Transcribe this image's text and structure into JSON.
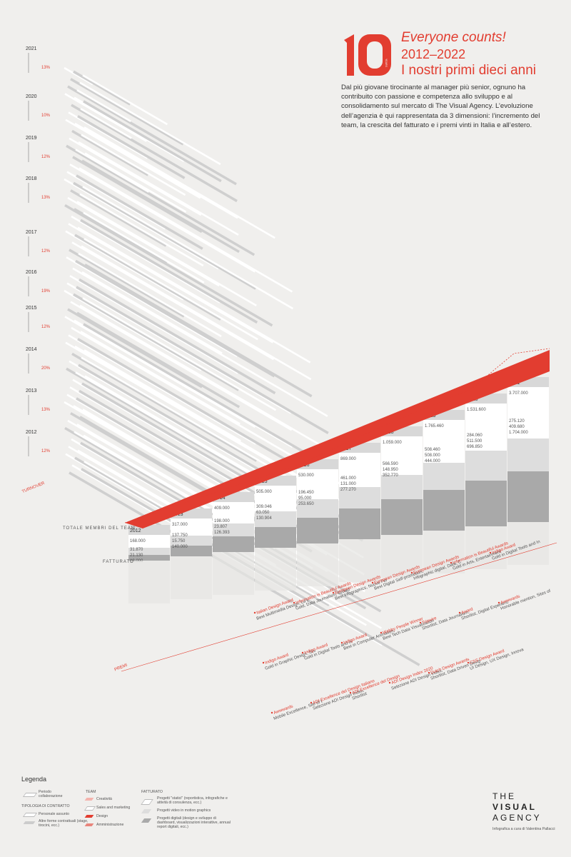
{
  "header": {
    "logo_number": "10",
    "logo_sub": "YEARS",
    "subtitle": "Everyone counts!",
    "years": "2012–2022",
    "headline": "I nostri primi dieci anni",
    "intro": "Dal più giovane tirocinante al manager più senior, ognuno ha contribuito con passione e competenza allo sviluppo e al consolidamento sul mercato di The Visual Agency. L’evoluzione dell’agenzia è qui rappresentata da 3 dimensioni: l’incremento del team, la crescita del fatturato e i premi vinti in Italia e all’estero."
  },
  "axes": {
    "team": "TOTALE MEMBRI DEL TEAM",
    "fatturato": "FATTURATO",
    "premi": "PREMI",
    "turnover": "TURNOVER"
  },
  "timeline_years": [
    "2021",
    "2020",
    "2019",
    "2018",
    "2017",
    "2016",
    "2015",
    "2014",
    "2013",
    "2012"
  ],
  "turnover_pct": [
    "13%",
    "10%",
    "12%",
    "13%",
    "12%",
    "19%",
    "12%",
    "20%",
    "13%",
    "12%"
  ],
  "columns": [
    {
      "year": "2012",
      "top": "168.000",
      "vals": [
        "31.870",
        "21.130",
        "18.000"
      ]
    },
    {
      "year": "2013",
      "top": "317.000",
      "vals": [
        "137.750",
        "15.750",
        "140.000"
      ]
    },
    {
      "year": "2014",
      "top": "409.000",
      "vals": [
        "198.000",
        "23.807",
        "126.393"
      ]
    },
    {
      "year": "2015",
      "top": "505.000",
      "vals": [
        "309.046",
        "63.050",
        "130.904"
      ]
    },
    {
      "year": "2016",
      "top": "530.000",
      "vals": [
        "196.450",
        "95.000",
        "253.650"
      ]
    },
    {
      "year": "2017",
      "top": "869.000",
      "vals": [
        "461.000",
        "131.000",
        "277.270"
      ]
    },
    {
      "year": "2018",
      "top": "1.059.000",
      "vals": [
        "566.590",
        "148.950",
        "352.770"
      ]
    },
    {
      "year": "2019",
      "top": "1.765.460",
      "vals": [
        "508.460",
        "508.000",
        "444.000"
      ]
    },
    {
      "year": "2020",
      "top": "1.531.600",
      "vals": [
        "284.060",
        "511.500",
        "696.850"
      ]
    },
    {
      "year": "2021",
      "top": "3.707.000",
      "vals": [
        "275.120",
        "409.680",
        "1.704.000"
      ]
    }
  ],
  "premi": [
    {
      "title": "Italian Design Award",
      "body": "Best Multimedia Design, La Lettura - Corriere della Sera"
    },
    {
      "title": "Information is Beautiful Awards",
      "body": "Gold, Data Journalism, Crowdfunding Visualized, Le Lettura - Corriere della Sera"
    },
    {
      "title": "European Design Awards",
      "body": "Best Infographics, Nuove Ferrovie, Le Lettura - Corriere della Sera"
    },
    {
      "title": "European Design Awards",
      "body": "Best Digital Self-promotion, Build a Day in Life, The Visual Agency"
    },
    {
      "title": "European Design Awards",
      "body": "Infographic digital, Data, Cognition Network, Corriere della Sera"
    },
    {
      "title": "Information is Beautiful Awards",
      "body": "Gold in Arts, Entertainment & Culture, Feature, A Day in Lilly's Life, The Visual Agency"
    },
    {
      "title": "Indigo Award",
      "body": "Gold in Digital Tools and Interactive Design, Gold in Infographic"
    },
    {
      "title": "Indigo Award",
      "body": "Gold in Graphic Design, Silver in Digital Design, Inforaphic, The Visual Agency"
    },
    {
      "title": "Indigo Award",
      "body": "Gold in Digital Tools and Interactive Design, Beyond Capital, Banca Generali"
    },
    {
      "title": "Indigo Award",
      "body": "Best in Computer Animation, Design, Gold in Interactive Media, Banca Generali"
    },
    {
      "title": "Webby People Winner",
      "body": "Best Tech Data Visualization, Art's Fair, The New York Times"
    },
    {
      "title": "Tripwire",
      "body": "Shortlist, Data Journalism, The Visual Agency"
    },
    {
      "title": "Award",
      "body": "Shortlist, Digital Experiences, Infographics, The Visual Agency"
    },
    {
      "title": "Awwwards",
      "body": "Honorable mention, Sites of the Day, Mobile Excellence"
    },
    {
      "title": "Awwwards",
      "body": "Mobile Excellence, Site of the Day, Site of the Month"
    },
    {
      "title": "ADI Excellence del Design Italiano",
      "body": "Selezione ADI Design Index, Banca Generali"
    },
    {
      "title": "ADI Excellence del Design",
      "body": "Shortlist"
    },
    {
      "title": "ADI Design Index 2020",
      "body": "Selezione ADI Design Index, Banca Generali"
    },
    {
      "title": "Dutch Design Awards",
      "body": "Shortlist, Data Driven Design"
    },
    {
      "title": "CSS Design Award",
      "body": "UI Design, UX Design, Innovation, Site of the Day, The Visual Agency"
    }
  ],
  "legend": {
    "title": "Legenda",
    "periodo": "Periodo collaborazione",
    "tipologia": "TIPOLOGIA DI CONTRATTO",
    "assunto": "Personale assunto",
    "altre": "Altre forme contrattuali (stage, tirocini, ecc.)",
    "team_head": "TEAM",
    "creativita": "Creatività",
    "sales": "Sales and marketing",
    "design": "Design",
    "amministrazione": "Amministrazione",
    "fatt_head": "FATTURATO",
    "statici": "Progetti \"statici\" (reportistica, infografiche e attività di consulenza, ecc.)",
    "video": "Progetti video in motion graphics",
    "digitali": "Progetti digitali (design e sviluppo di dashboard, visualizzazioni interattive, annual report digitali, ecc.)"
  },
  "brand": {
    "line1": "THE",
    "line2": "VISUAL",
    "line3": "AGENCY",
    "credit": "Infografica a cura di Valentina Pallacci"
  },
  "colors": {
    "accent": "#e23d30",
    "bg": "#f0efed"
  }
}
